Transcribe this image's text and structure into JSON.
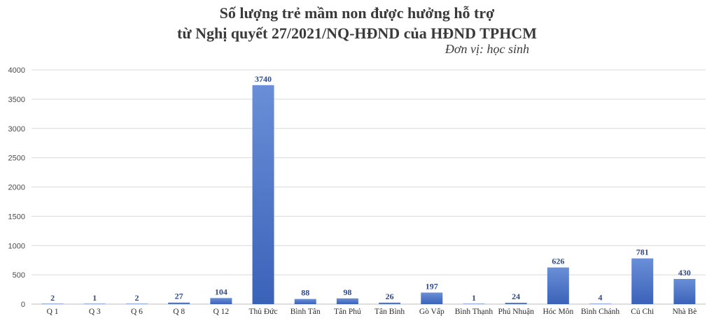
{
  "chart_data": {
    "type": "bar",
    "title_lines": [
      "Số lượng trẻ mầm non được hưởng hỗ trợ",
      "từ Nghị quyết 27/2021/NQ-HĐND của HĐND TPHCM"
    ],
    "unit_label": "Đơn vị: học sinh",
    "categories": [
      "Q 1",
      "Q 3",
      "Q 6",
      "Q 8",
      "Q 12",
      "Thủ Đức",
      "Bình Tân",
      "Tân Phú",
      "Tân Bình",
      "Gò Vấp",
      "Bình Thạnh",
      "Phú Nhuận",
      "Hóc Môn",
      "Bình Chánh",
      "Củ Chi",
      "Nhà Bè"
    ],
    "values": [
      2,
      1,
      2,
      27,
      104,
      3740,
      88,
      98,
      26,
      197,
      1,
      24,
      626,
      4,
      781,
      430
    ],
    "data_labels": [
      "2",
      "1",
      "2",
      "27",
      "104",
      "3740",
      "88",
      "98",
      "26",
      "197",
      "1",
      "24",
      "626",
      "4",
      "781",
      "430"
    ],
    "yticks": [
      "0",
      "500",
      "1000",
      "1500",
      "2000",
      "2500",
      "3000",
      "3500",
      "4000"
    ],
    "ylim": [
      0,
      4000
    ],
    "grid": true,
    "bar_color_top": "#6a8fd8",
    "bar_color_bottom": "#3a62b8",
    "label_color": "#2d4a8a"
  }
}
